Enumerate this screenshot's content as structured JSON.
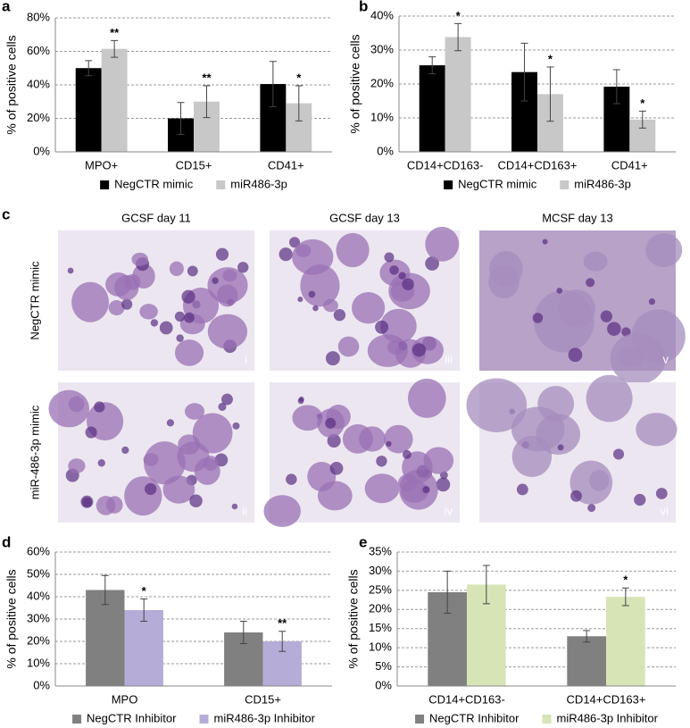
{
  "chart_data": [
    {
      "type": "bar",
      "panel": "a",
      "y_label": "% of positive cells",
      "categories": [
        "MPO+",
        "CD15+",
        "CD41+"
      ],
      "series": [
        {
          "name": "NegCTR mimic",
          "color": "#000000",
          "values": [
            50,
            20,
            40.5
          ],
          "errors": [
            4.5,
            9.5,
            13.5
          ],
          "significance": [
            null,
            null,
            null
          ]
        },
        {
          "name": "miR486-3p",
          "color": "#c8c8c8",
          "values": [
            61.5,
            30,
            29
          ],
          "errors": [
            5,
            9.5,
            10.5
          ],
          "significance": [
            "**",
            "**",
            "*"
          ]
        }
      ],
      "ylim": [
        0,
        80
      ],
      "yticks": [
        {
          "value": 0,
          "label": "0%"
        },
        {
          "value": 20,
          "label": "20%"
        },
        {
          "value": 40,
          "label": "40%"
        },
        {
          "value": 60,
          "label": "60%"
        },
        {
          "value": 80,
          "label": "80%"
        }
      ],
      "grid": true
    },
    {
      "type": "bar",
      "panel": "b",
      "y_label": "% of positive cells",
      "categories": [
        "CD14+CD163-",
        "CD14+CD163+",
        "CD41+"
      ],
      "series": [
        {
          "name": "NegCTR mimic",
          "color": "#000000",
          "values": [
            25.5,
            23.5,
            19.2
          ],
          "errors": [
            2.5,
            8.5,
            5
          ],
          "significance": [
            null,
            null,
            null
          ]
        },
        {
          "name": "miR486-3p",
          "color": "#c8c8c8",
          "values": [
            33.8,
            17,
            9.5
          ],
          "errors": [
            4,
            8,
            2.5
          ],
          "significance": [
            "*",
            "*",
            "*"
          ]
        }
      ],
      "ylim": [
        0,
        40
      ],
      "yticks": [
        {
          "value": 0,
          "label": "0%"
        },
        {
          "value": 10,
          "label": "10%"
        },
        {
          "value": 20,
          "label": "20%"
        },
        {
          "value": 30,
          "label": "30%"
        },
        {
          "value": 40,
          "label": "40%"
        }
      ],
      "grid": true
    },
    {
      "type": "bar",
      "panel": "d",
      "y_label": "% of positive cells",
      "categories": [
        "MPO",
        "CD15+"
      ],
      "series": [
        {
          "name": "NegCTR Inhibitor",
          "color": "#808080",
          "values": [
            43,
            24
          ],
          "errors": [
            6.5,
            5
          ],
          "significance": [
            null,
            null
          ]
        },
        {
          "name": "miR486-3p Inhibitor",
          "color": "#b6acd8",
          "values": [
            34,
            20
          ],
          "errors": [
            5,
            4.5
          ],
          "significance": [
            "*",
            "**"
          ]
        }
      ],
      "ylim": [
        0,
        60
      ],
      "yticks": [
        {
          "value": 0,
          "label": "0%"
        },
        {
          "value": 10,
          "label": "10%"
        },
        {
          "value": 20,
          "label": "20%"
        },
        {
          "value": 30,
          "label": "30%"
        },
        {
          "value": 40,
          "label": "40%"
        },
        {
          "value": 50,
          "label": "50%"
        },
        {
          "value": 60,
          "label": "60%"
        }
      ],
      "grid": true
    },
    {
      "type": "bar",
      "panel": "e",
      "y_label": "% of positive cells",
      "categories": [
        "CD14+CD163-",
        "CD14+CD163+"
      ],
      "series": [
        {
          "name": "NegCTR Inhibitor",
          "color": "#808080",
          "values": [
            24.5,
            13
          ],
          "errors": [
            5.5,
            1.5
          ],
          "significance": [
            null,
            null
          ]
        },
        {
          "name": "miR486-3p Inhibitor",
          "color": "#d7e4b6",
          "values": [
            26.5,
            23.3
          ],
          "errors": [
            5,
            2.3
          ],
          "significance": [
            null,
            "*"
          ]
        }
      ],
      "ylim": [
        0,
        35
      ],
      "yticks": [
        {
          "value": 0,
          "label": "0%"
        },
        {
          "value": 5,
          "label": "5%"
        },
        {
          "value": 10,
          "label": "10%"
        },
        {
          "value": 15,
          "label": "15%"
        },
        {
          "value": 20,
          "label": "20%"
        },
        {
          "value": 25,
          "label": "25%"
        },
        {
          "value": 30,
          "label": "30%"
        },
        {
          "value": 35,
          "label": "35%"
        }
      ],
      "grid": true
    }
  ],
  "figure_c": {
    "panel": "c",
    "columns": [
      "GCSF day 11",
      "GCSF day 13",
      "MCSF day 13"
    ],
    "rows": [
      "NegCTR mimic",
      "miR-486-3p mimic"
    ],
    "image_labels": [
      [
        "i",
        "iii",
        "v"
      ],
      [
        "ii",
        "iv",
        "vi"
      ]
    ]
  }
}
